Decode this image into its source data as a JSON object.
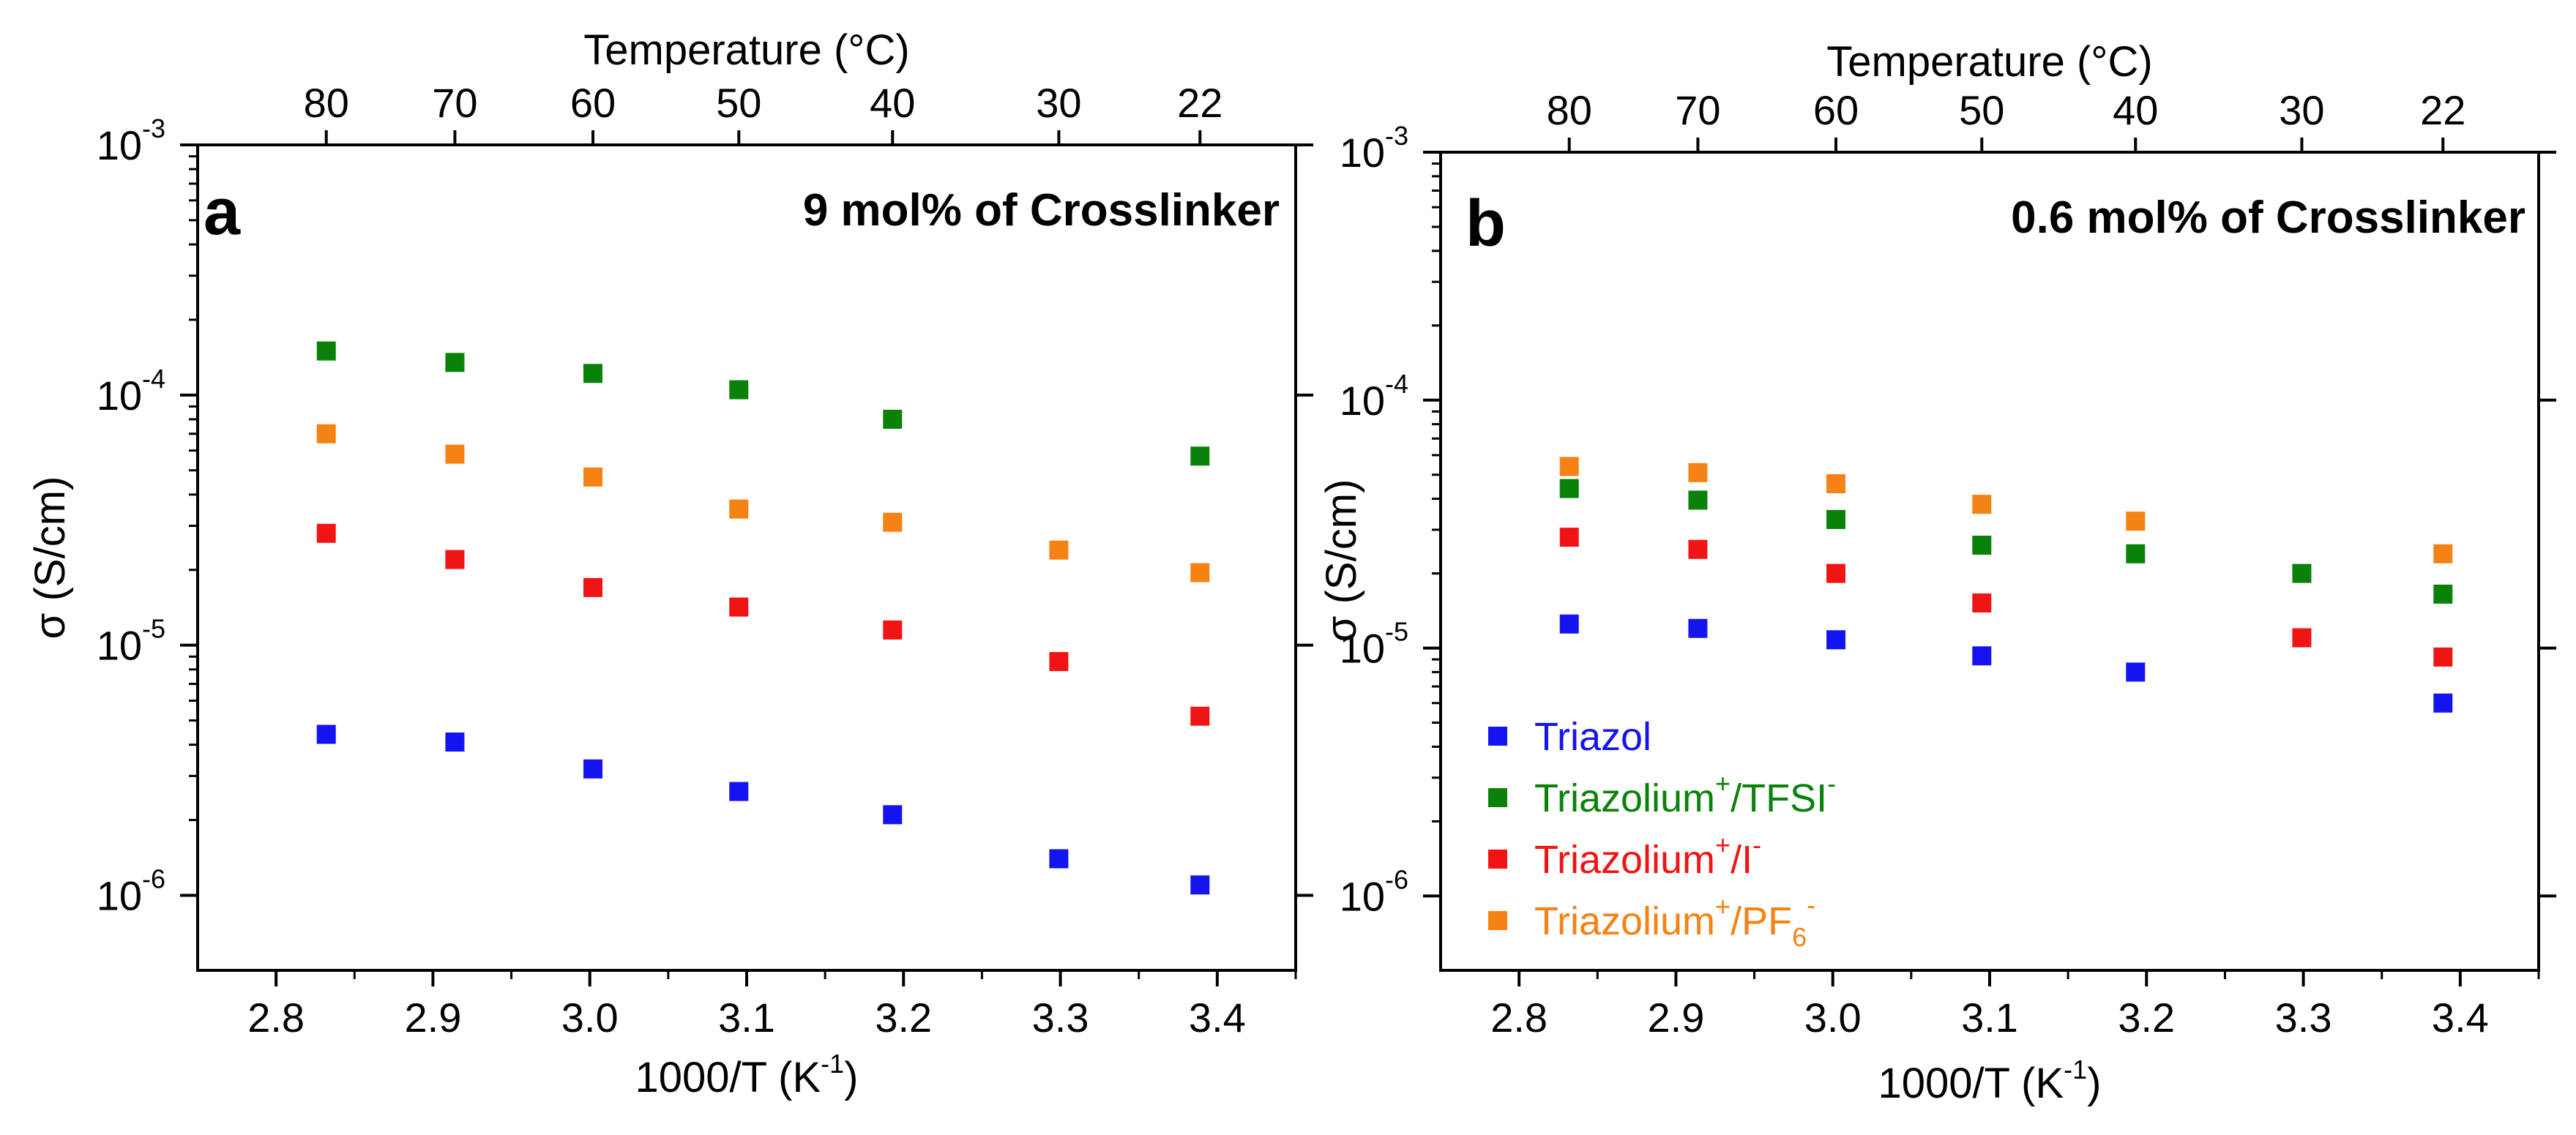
{
  "colors": {
    "Triazol": "#1414f0",
    "Triazolium+/TFSI-": "#0a820a",
    "Triazolium+/I-": "#f01414",
    "Triazolium+/PF6-": "#f58214"
  },
  "chart_data": [
    {
      "type": "scatter",
      "panel": "a",
      "title": "9 mol% of Crosslinker",
      "xlabel": "1000/T (K-1)",
      "ylabel": "σ (S/cm)",
      "top_xlabel": "Temperature (°C)",
      "xlim": [
        2.75,
        3.45
      ],
      "ylim_log10": [
        -6.3,
        -3
      ],
      "yscale": "log",
      "xticks": [
        "2.8",
        "2.9",
        "3.0",
        "3.1",
        "3.2",
        "3.3",
        "3.4"
      ],
      "yticks": [
        {
          "base": "10",
          "exp": "-3",
          "value": -3
        },
        {
          "base": "10",
          "exp": "-4",
          "value": -4
        },
        {
          "base": "10",
          "exp": "-5",
          "value": -5
        },
        {
          "base": "10",
          "exp": "-6",
          "value": -6
        }
      ],
      "top_ticks": [
        "80",
        "70",
        "60",
        "50",
        "40",
        "30",
        "22"
      ],
      "top_ticks_x": [
        2.832,
        2.914,
        3.002,
        3.095,
        3.193,
        3.299,
        3.389
      ],
      "series": [
        {
          "name": "Triazol",
          "x": [
            2.832,
            2.914,
            3.002,
            3.095,
            3.193,
            3.299,
            3.389
          ],
          "y": [
            4.4e-06,
            4.1e-06,
            3.2e-06,
            2.6e-06,
            2.1e-06,
            1.4e-06,
            1.1e-06
          ]
        },
        {
          "name": "Triazolium+/TFSI-",
          "x": [
            2.832,
            2.914,
            3.002,
            3.095,
            3.193,
            3.389
          ],
          "y": [
            0.00015,
            0.000135,
            0.000122,
            0.000105,
            8e-05,
            5.7e-05
          ]
        },
        {
          "name": "Triazolium+/I-",
          "x": [
            2.832,
            2.914,
            3.002,
            3.095,
            3.193,
            3.299,
            3.389
          ],
          "y": [
            2.8e-05,
            2.2e-05,
            1.7e-05,
            1.42e-05,
            1.15e-05,
            8.6e-06,
            5.2e-06
          ]
        },
        {
          "name": "Triazolium+/PF6-",
          "x": [
            2.832,
            2.914,
            3.002,
            3.095,
            3.193,
            3.299,
            3.389
          ],
          "y": [
            7e-05,
            5.8e-05,
            4.7e-05,
            3.5e-05,
            3.1e-05,
            2.4e-05,
            1.95e-05
          ]
        }
      ]
    },
    {
      "type": "scatter",
      "panel": "b",
      "title": "0.6 mol% of Crosslinker",
      "xlabel": "1000/T (K-1)",
      "ylabel": "σ (S/cm)",
      "top_xlabel": "Temperature (°C)",
      "xlim": [
        2.75,
        3.45
      ],
      "ylim_log10": [
        -6.3,
        -3
      ],
      "yscale": "log",
      "xticks": [
        "2.8",
        "2.9",
        "3.0",
        "3.1",
        "3.2",
        "3.3",
        "3.4"
      ],
      "yticks": [
        {
          "base": "10",
          "exp": "-3",
          "value": -3
        },
        {
          "base": "10",
          "exp": "-4",
          "value": -4
        },
        {
          "base": "10",
          "exp": "-5",
          "value": -5
        },
        {
          "base": "10",
          "exp": "-6",
          "value": -6
        }
      ],
      "top_ticks": [
        "80",
        "70",
        "60",
        "50",
        "40",
        "30",
        "22"
      ],
      "top_ticks_x": [
        2.832,
        2.914,
        3.002,
        3.095,
        3.193,
        3.299,
        3.389
      ],
      "legend": {
        "placement": "lower-left",
        "entries": [
          {
            "series": "Triazol",
            "text": "Triazol",
            "sup": "",
            "sub": "",
            "tail": "",
            "sup2": ""
          },
          {
            "series": "Triazolium+/TFSI-",
            "text": "Triazolium",
            "sup": "+",
            "sub": "",
            "tail": "/TFSI",
            "sup2": "-"
          },
          {
            "series": "Triazolium+/I-",
            "text": "Triazolium",
            "sup": "+",
            "sub": "",
            "tail": "/I",
            "sup2": "-"
          },
          {
            "series": "Triazolium+/PF6-",
            "text": "Triazolium",
            "sup": "+",
            "sub": "6",
            "tail": "/PF",
            "sup2": "-"
          }
        ]
      },
      "series": [
        {
          "name": "Triazol",
          "x": [
            2.832,
            2.914,
            3.002,
            3.095,
            3.193,
            3.389
          ],
          "y": [
            1.25e-05,
            1.2e-05,
            1.08e-05,
            9.3e-06,
            8e-06,
            6e-06
          ]
        },
        {
          "name": "Triazolium+/TFSI-",
          "x": [
            2.832,
            2.914,
            3.002,
            3.095,
            3.193,
            3.299,
            3.389
          ],
          "y": [
            4.4e-05,
            3.95e-05,
            3.3e-05,
            2.6e-05,
            2.4e-05,
            2e-05,
            1.65e-05
          ]
        },
        {
          "name": "Triazolium+/I-",
          "x": [
            2.832,
            2.914,
            3.002,
            3.095,
            3.299,
            3.389
          ],
          "y": [
            2.8e-05,
            2.5e-05,
            2e-05,
            1.52e-05,
            1.1e-05,
            9.2e-06
          ]
        },
        {
          "name": "Triazolium+/PF6-",
          "x": [
            2.832,
            2.914,
            3.002,
            3.095,
            3.193,
            3.389
          ],
          "y": [
            5.4e-05,
            5.1e-05,
            4.6e-05,
            3.8e-05,
            3.25e-05,
            2.4e-05
          ]
        }
      ]
    }
  ]
}
